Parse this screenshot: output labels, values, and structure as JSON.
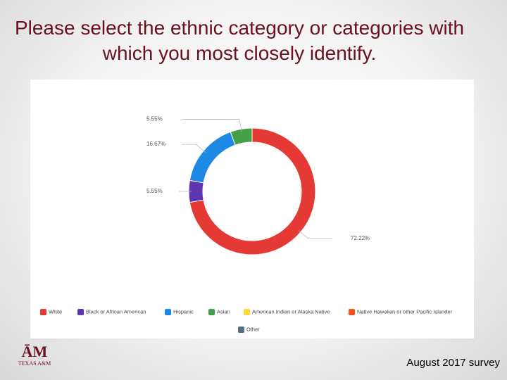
{
  "title": "Please select the ethnic category or categories with which you most closely identify.",
  "footer": "August 2017 survey",
  "logo": "TEXAS A&M",
  "chart_data": {
    "type": "donut",
    "categories": [
      "White",
      "Black or African American",
      "Hispanic",
      "Asian",
      "American Indian or Alaska Native",
      "Native Hawaiian or other Pacific Islander",
      "Other"
    ],
    "values": [
      72.22,
      5.55,
      16.67,
      5.55,
      0,
      0,
      0
    ],
    "value_labels": [
      "72.22%",
      "5.55%",
      "16.67%",
      "5.55%",
      null,
      null,
      null
    ],
    "colors": [
      "#e53935",
      "#5e35b1",
      "#1e88e5",
      "#43a047",
      "#fdd835",
      "#f4511e",
      "#546e7a"
    ]
  }
}
